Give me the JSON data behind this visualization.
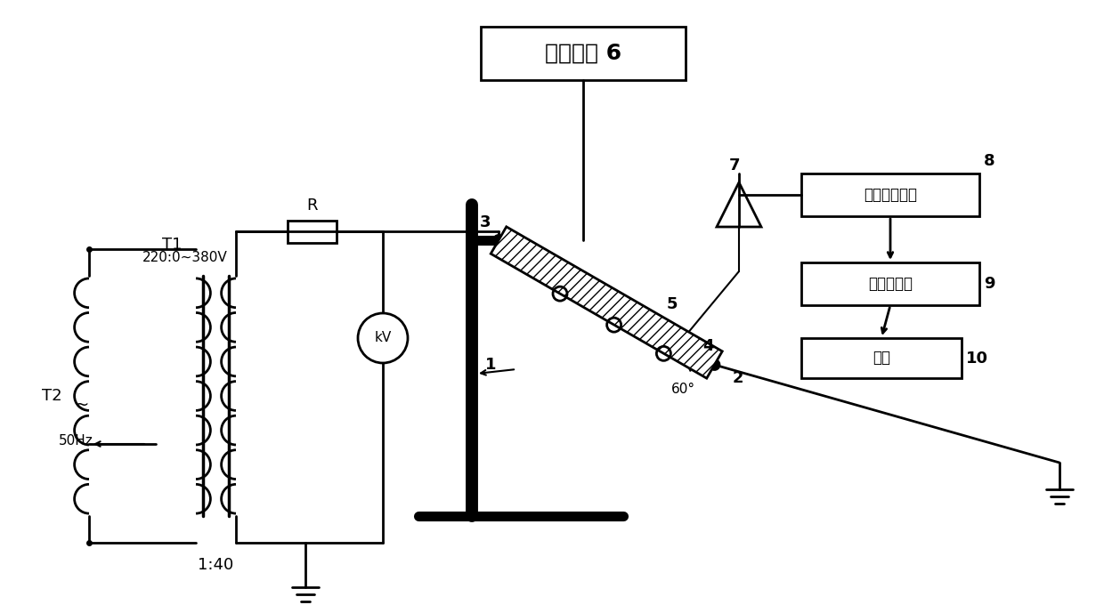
{
  "title": "",
  "background": "#ffffff",
  "labels": {
    "drip_device": "滴水装置 6",
    "filter_amp": "滤波放大电路",
    "data_acq": "数据采集卡",
    "computer": "电脑",
    "ratio": "1:40",
    "voltage": "220:0~380V",
    "freq": "50Hz",
    "R_label": "R",
    "T1_label": "T1",
    "T2_label": "T2",
    "kV_label": "kV",
    "num1": "1",
    "num2": "2",
    "num3": "3",
    "num4": "4",
    "num5": "5",
    "num6": "6",
    "num7": "7",
    "num8": "8",
    "num9": "9",
    "num10": "10",
    "angle_label": "60°"
  }
}
